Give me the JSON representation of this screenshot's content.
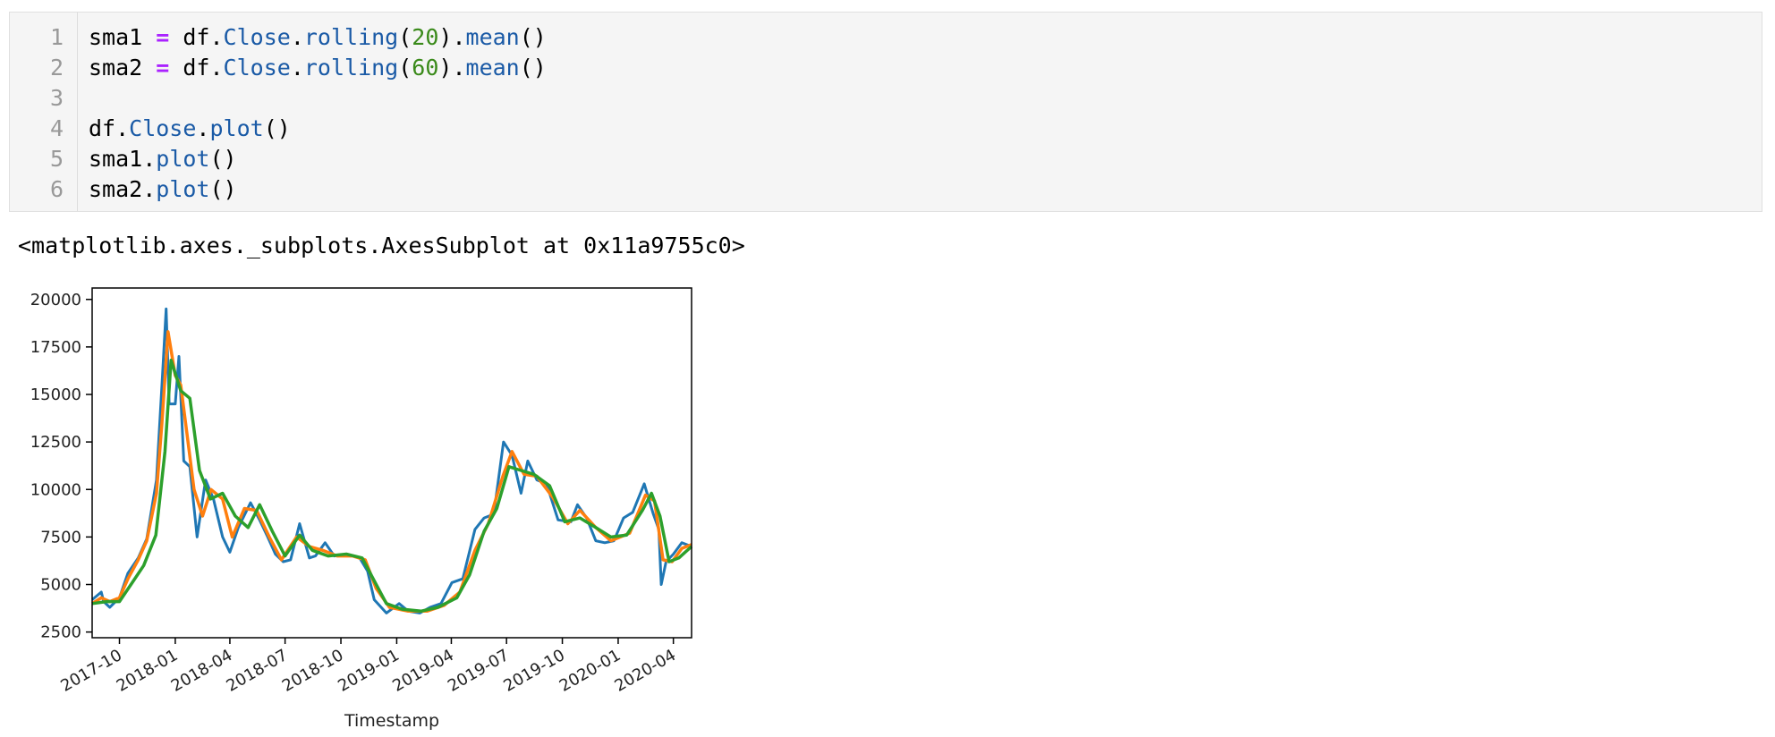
{
  "code_cell": {
    "line_numbers": [
      "1",
      "2",
      "3",
      "4",
      "5",
      "6"
    ],
    "lines": [
      [
        {
          "t": "sma1 ",
          "c": ""
        },
        {
          "t": "=",
          "c": "op"
        },
        {
          "t": " df.",
          "c": ""
        },
        {
          "t": "Close",
          "c": "attr"
        },
        {
          "t": ".",
          "c": ""
        },
        {
          "t": "rolling",
          "c": "attr"
        },
        {
          "t": "(",
          "c": ""
        },
        {
          "t": "20",
          "c": "num"
        },
        {
          "t": ").",
          "c": ""
        },
        {
          "t": "mean",
          "c": "attr"
        },
        {
          "t": "()",
          "c": ""
        }
      ],
      [
        {
          "t": "sma2 ",
          "c": ""
        },
        {
          "t": "=",
          "c": "op"
        },
        {
          "t": " df.",
          "c": ""
        },
        {
          "t": "Close",
          "c": "attr"
        },
        {
          "t": ".",
          "c": ""
        },
        {
          "t": "rolling",
          "c": "attr"
        },
        {
          "t": "(",
          "c": ""
        },
        {
          "t": "60",
          "c": "num"
        },
        {
          "t": ").",
          "c": ""
        },
        {
          "t": "mean",
          "c": "attr"
        },
        {
          "t": "()",
          "c": ""
        }
      ],
      [],
      [
        {
          "t": "df.",
          "c": ""
        },
        {
          "t": "Close",
          "c": "attr"
        },
        {
          "t": ".",
          "c": ""
        },
        {
          "t": "plot",
          "c": "attr"
        },
        {
          "t": "()",
          "c": ""
        }
      ],
      [
        {
          "t": "sma1.",
          "c": ""
        },
        {
          "t": "plot",
          "c": "attr"
        },
        {
          "t": "()",
          "c": ""
        }
      ],
      [
        {
          "t": "sma2.",
          "c": ""
        },
        {
          "t": "plot",
          "c": "attr"
        },
        {
          "t": "()",
          "c": ""
        }
      ]
    ]
  },
  "output": {
    "repr_text": "<matplotlib.axes._subplots.AxesSubplot at 0x11a9755c0>"
  },
  "chart_data": {
    "type": "line",
    "xlabel": "Timestamp",
    "ylabel": "",
    "title": "",
    "x_range": [
      "2017-08-17",
      "2020-05-01"
    ],
    "ylim": [
      2200,
      20600
    ],
    "yticks": [
      2500,
      5000,
      7500,
      10000,
      12500,
      15000,
      17500,
      20000
    ],
    "xticks": [
      "2017-10",
      "2018-01",
      "2018-04",
      "2018-07",
      "2018-10",
      "2019-01",
      "2019-04",
      "2019-07",
      "2019-10",
      "2020-01",
      "2020-04"
    ],
    "grid": false,
    "colors": [
      "#1f77b4",
      "#ff7f0e",
      "#2ca02c"
    ],
    "series": [
      {
        "x": [
          "2017-08-17",
          "2017-09-01",
          "2017-09-05",
          "2017-09-15",
          "2017-10-01",
          "2017-10-15",
          "2017-11-01",
          "2017-11-15",
          "2017-12-01",
          "2017-12-10",
          "2017-12-17",
          "2017-12-22",
          "2018-01-01",
          "2018-01-07",
          "2018-01-15",
          "2018-01-25",
          "2018-02-06",
          "2018-02-20",
          "2018-03-05",
          "2018-03-20",
          "2018-04-01",
          "2018-04-15",
          "2018-05-05",
          "2018-05-20",
          "2018-06-01",
          "2018-06-15",
          "2018-06-28",
          "2018-07-10",
          "2018-07-25",
          "2018-08-10",
          "2018-08-20",
          "2018-09-05",
          "2018-09-20",
          "2018-10-10",
          "2018-11-01",
          "2018-11-14",
          "2018-11-25",
          "2018-12-15",
          "2019-01-05",
          "2019-01-20",
          "2019-02-08",
          "2019-02-25",
          "2019-03-15",
          "2019-04-02",
          "2019-04-20",
          "2019-05-10",
          "2019-05-25",
          "2019-06-10",
          "2019-06-26",
          "2019-07-10",
          "2019-07-25",
          "2019-08-05",
          "2019-08-20",
          "2019-09-05",
          "2019-09-24",
          "2019-10-15",
          "2019-10-26",
          "2019-11-10",
          "2019-11-25",
          "2019-12-10",
          "2019-12-25",
          "2020-01-10",
          "2020-01-25",
          "2020-02-13",
          "2020-02-28",
          "2020-03-08",
          "2020-03-12",
          "2020-03-20",
          "2020-04-01",
          "2020-04-15",
          "2020-05-01"
        ],
        "values": [
          4200,
          4600,
          4100,
          3800,
          4300,
          5600,
          6400,
          7400,
          10500,
          15500,
          19500,
          14500,
          14500,
          17000,
          11500,
          11200,
          7500,
          10500,
          9500,
          7500,
          6700,
          8000,
          9300,
          8400,
          7600,
          6600,
          6200,
          6300,
          8200,
          6400,
          6500,
          7200,
          6500,
          6600,
          6400,
          5700,
          4200,
          3500,
          4000,
          3600,
          3500,
          3800,
          4000,
          5100,
          5300,
          7900,
          8500,
          8700,
          12500,
          11800,
          9800,
          11500,
          10500,
          10300,
          8400,
          8300,
          9200,
          8500,
          7300,
          7200,
          7300,
          8500,
          8800,
          10300,
          8700,
          7900,
          5000,
          6200,
          6600,
          7200,
          7000
        ]
      },
      {
        "x": [
          "2017-08-17",
          "2017-09-01",
          "2017-09-15",
          "2017-10-01",
          "2017-10-15",
          "2017-11-01",
          "2017-11-15",
          "2017-12-01",
          "2017-12-10",
          "2017-12-20",
          "2018-01-01",
          "2018-01-10",
          "2018-01-20",
          "2018-02-01",
          "2018-02-15",
          "2018-03-01",
          "2018-03-20",
          "2018-04-05",
          "2018-04-25",
          "2018-05-15",
          "2018-06-05",
          "2018-06-25",
          "2018-07-20",
          "2018-08-10",
          "2018-09-01",
          "2018-09-25",
          "2018-10-20",
          "2018-11-10",
          "2018-11-28",
          "2018-12-20",
          "2019-01-20",
          "2019-02-20",
          "2019-03-20",
          "2019-04-15",
          "2019-05-10",
          "2019-06-01",
          "2019-06-25",
          "2019-07-10",
          "2019-07-30",
          "2019-08-20",
          "2019-09-15",
          "2019-10-10",
          "2019-10-30",
          "2019-11-25",
          "2019-12-20",
          "2020-01-20",
          "2020-02-15",
          "2020-03-01",
          "2020-03-15",
          "2020-03-30",
          "2020-04-15",
          "2020-05-01"
        ],
        "values": [
          4000,
          4300,
          4100,
          4300,
          5300,
          6300,
          7300,
          9800,
          13500,
          18300,
          16000,
          15500,
          13000,
          10000,
          8600,
          10000,
          9500,
          7500,
          9000,
          8900,
          7500,
          6300,
          7500,
          7000,
          6800,
          6500,
          6500,
          6300,
          4800,
          3800,
          3600,
          3600,
          3900,
          4600,
          6800,
          8200,
          10700,
          12000,
          10800,
          10700,
          9600,
          8200,
          8900,
          8000,
          7300,
          7700,
          9700,
          9400,
          6300,
          6200,
          6900,
          7100
        ]
      },
      {
        "x": [
          "2017-08-17",
          "2017-09-10",
          "2017-10-01",
          "2017-10-20",
          "2017-11-10",
          "2017-11-30",
          "2017-12-15",
          "2017-12-25",
          "2018-01-10",
          "2018-01-25",
          "2018-02-10",
          "2018-02-28",
          "2018-03-20",
          "2018-04-10",
          "2018-05-01",
          "2018-05-20",
          "2018-06-10",
          "2018-07-01",
          "2018-07-25",
          "2018-08-15",
          "2018-09-10",
          "2018-10-10",
          "2018-11-05",
          "2018-11-25",
          "2018-12-15",
          "2019-01-10",
          "2019-02-10",
          "2019-03-10",
          "2019-04-10",
          "2019-05-01",
          "2019-05-25",
          "2019-06-15",
          "2019-07-05",
          "2019-07-25",
          "2019-08-15",
          "2019-09-10",
          "2019-10-05",
          "2019-10-30",
          "2019-11-25",
          "2019-12-20",
          "2020-01-15",
          "2020-02-10",
          "2020-02-25",
          "2020-03-10",
          "2020-03-25",
          "2020-04-10",
          "2020-05-01"
        ],
        "values": [
          4000,
          4100,
          4100,
          5000,
          6000,
          7600,
          12000,
          16800,
          15200,
          14800,
          11000,
          9500,
          9800,
          8600,
          8000,
          9200,
          7800,
          6500,
          7600,
          6800,
          6500,
          6600,
          6400,
          5200,
          4000,
          3700,
          3600,
          3800,
          4300,
          5500,
          7800,
          9000,
          11200,
          11000,
          10800,
          10200,
          8300,
          8500,
          8000,
          7500,
          7600,
          8900,
          9800,
          8600,
          6200,
          6400,
          7000
        ]
      }
    ]
  }
}
